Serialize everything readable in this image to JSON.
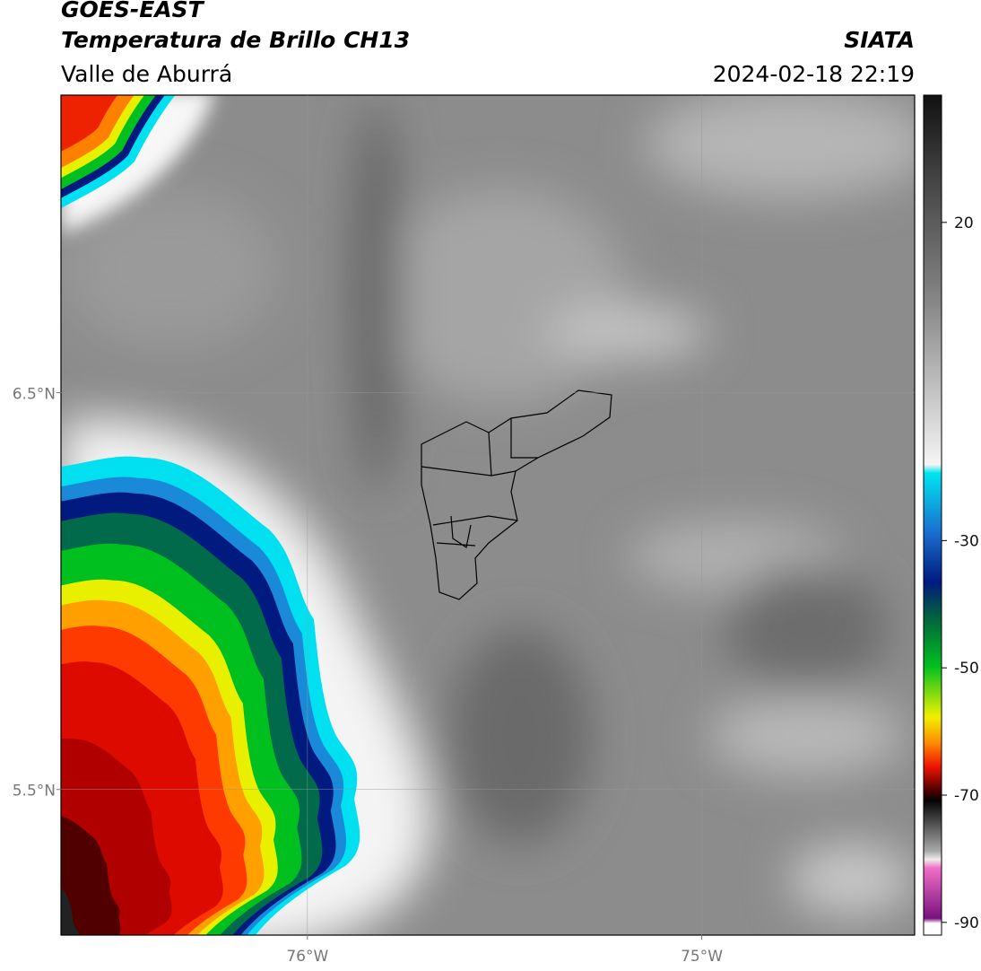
{
  "header": {
    "title": "GOES-EAST",
    "subtitle": "Temperatura de Brillo CH13",
    "region": "Valle de Aburrá",
    "source": "SIATA",
    "timestamp": "2024-02-18 22:19"
  },
  "map": {
    "lon_range": [
      -76.625,
      -74.46
    ],
    "lat_range": [
      5.133,
      7.25
    ],
    "lat_ticks": [
      {
        "value": 6.5,
        "label": "6.5°N"
      },
      {
        "value": 5.5,
        "label": "5.5°N"
      }
    ],
    "lon_ticks": [
      {
        "value": -76,
        "label": "76°W"
      },
      {
        "value": -75,
        "label": "75°W"
      }
    ]
  },
  "colorbar": {
    "range": [
      -92,
      40
    ],
    "ticks": [
      20,
      -30,
      -50,
      -70,
      -90
    ]
  }
}
